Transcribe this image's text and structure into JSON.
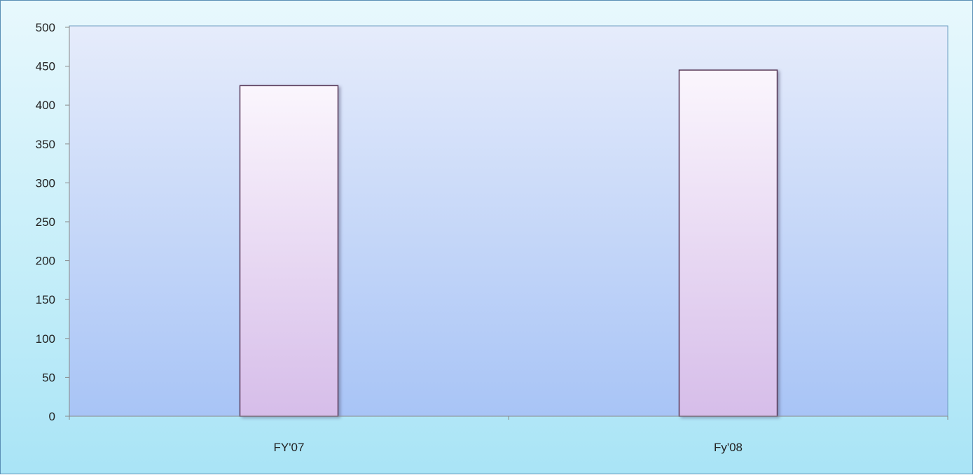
{
  "chart_data": {
    "type": "bar",
    "categories": [
      "FY'07",
      "Fy'08"
    ],
    "values": [
      425,
      445
    ],
    "title": "",
    "xlabel": "",
    "ylabel": "",
    "ylim": [
      0,
      500
    ],
    "yticks": [
      0,
      50,
      100,
      150,
      200,
      250,
      300,
      350,
      400,
      450,
      500
    ],
    "grid": false,
    "legend": "none",
    "colors": {
      "plot_top": "#e6ecfb",
      "plot_bottom": "#a8c4f6",
      "bar_top": "#fbf6fd",
      "bar_bottom": "#d6bde9",
      "bar_border": "#5a3a5a",
      "axis": "#888888"
    }
  }
}
